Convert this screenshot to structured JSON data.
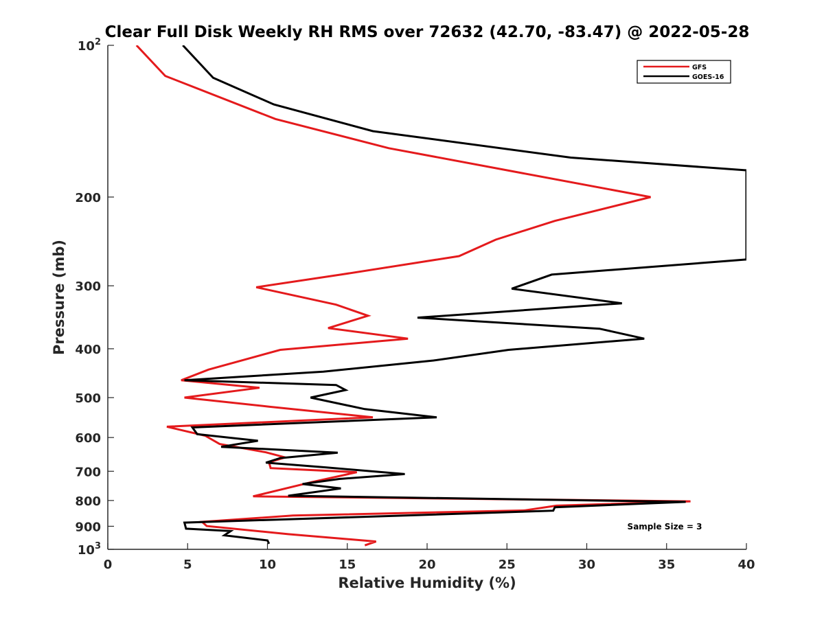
{
  "chart_data": {
    "type": "line",
    "title": "Clear Full Disk Weekly RH RMS over 72632 (42.70, -83.47) @ 2022-05-28",
    "xlabel": "Relative Humidity (%)",
    "ylabel": "Pressure (mb)",
    "xlim": [
      0,
      40
    ],
    "ylim": [
      100,
      1000
    ],
    "y_scale": "log",
    "y_reversed": true,
    "grid": false,
    "legend_position": "top-right",
    "xticks": [
      "0",
      "5",
      "10",
      "15",
      "20",
      "25",
      "30",
      "35",
      "40"
    ],
    "yticks": [
      {
        "value": 100,
        "base": "10",
        "exp": "2"
      },
      {
        "value": 200,
        "label": "200"
      },
      {
        "value": 300,
        "label": "300"
      },
      {
        "value": 400,
        "label": "400"
      },
      {
        "value": 500,
        "label": "500"
      },
      {
        "value": 600,
        "label": "600"
      },
      {
        "value": 700,
        "label": "700"
      },
      {
        "value": 800,
        "label": "800"
      },
      {
        "value": 900,
        "label": "900"
      },
      {
        "value": 1000,
        "base": "10",
        "exp": "3"
      }
    ],
    "annotation": "Sample Size = 3",
    "series": [
      {
        "name": "GFS",
        "color": "#e41a1c",
        "points": [
          [
            1.8,
            100
          ],
          [
            3.6,
            115
          ],
          [
            10.5,
            140
          ],
          [
            17.6,
            160
          ],
          [
            34,
            200
          ],
          [
            28,
            223
          ],
          [
            24.3,
            243
          ],
          [
            22,
            262
          ],
          [
            14.6,
            285
          ],
          [
            9.3,
            302
          ],
          [
            14.3,
            327
          ],
          [
            16.3,
            344
          ],
          [
            13.8,
            364
          ],
          [
            18.8,
            382
          ],
          [
            10.8,
            402
          ],
          [
            6.3,
            440
          ],
          [
            4.6,
            462
          ],
          [
            9.5,
            478
          ],
          [
            4.8,
            500
          ],
          [
            10.1,
            521
          ],
          [
            16.6,
            547
          ],
          [
            3.7,
            571
          ],
          [
            6.1,
            595
          ],
          [
            7,
            618
          ],
          [
            9.9,
            642
          ],
          [
            11.1,
            657
          ],
          [
            10.1,
            672
          ],
          [
            10.2,
            690
          ],
          [
            15.6,
            703
          ],
          [
            12.8,
            735
          ],
          [
            9.1,
            785
          ],
          [
            36.5,
            803
          ],
          [
            28.1,
            819
          ],
          [
            26.1,
            837
          ],
          [
            11.6,
            857
          ],
          [
            5.9,
            882
          ],
          [
            6.2,
            899
          ],
          [
            11.3,
            933
          ],
          [
            16.8,
            965
          ],
          [
            16.1,
            982
          ]
        ]
      },
      {
        "name": "GOES-16",
        "color": "#000000",
        "points": [
          [
            4.7,
            100
          ],
          [
            6.6,
            116
          ],
          [
            10.4,
            131
          ],
          [
            16.6,
            148
          ],
          [
            29,
            167
          ],
          [
            40,
            177
          ],
          [
            40,
            266
          ],
          [
            27.8,
            285
          ],
          [
            25.3,
            304
          ],
          [
            32.2,
            325
          ],
          [
            19.4,
            347
          ],
          [
            30.8,
            365
          ],
          [
            33.6,
            382
          ],
          [
            25.1,
            402
          ],
          [
            20.4,
            422
          ],
          [
            13.5,
            444
          ],
          [
            4.8,
            462
          ],
          [
            14.3,
            472
          ],
          [
            14.9,
            483
          ],
          [
            12.7,
            500
          ],
          [
            16.1,
            527
          ],
          [
            20.6,
            547
          ],
          [
            5.3,
            573
          ],
          [
            5.6,
            591
          ],
          [
            9.4,
            609
          ],
          [
            7.1,
            626
          ],
          [
            14.4,
            643
          ],
          [
            10.8,
            659
          ],
          [
            9.9,
            673
          ],
          [
            13.7,
            688
          ],
          [
            18.6,
            709
          ],
          [
            14.5,
            725
          ],
          [
            12.2,
            742
          ],
          [
            14.6,
            757
          ],
          [
            11.3,
            783
          ],
          [
            36.2,
            805
          ],
          [
            28,
            825
          ],
          [
            27.9,
            838
          ],
          [
            4.8,
            885
          ],
          [
            4.9,
            910
          ],
          [
            7.7,
            920
          ],
          [
            7.3,
            938
          ],
          [
            10,
            960
          ],
          [
            10.1,
            975
          ]
        ]
      }
    ]
  }
}
